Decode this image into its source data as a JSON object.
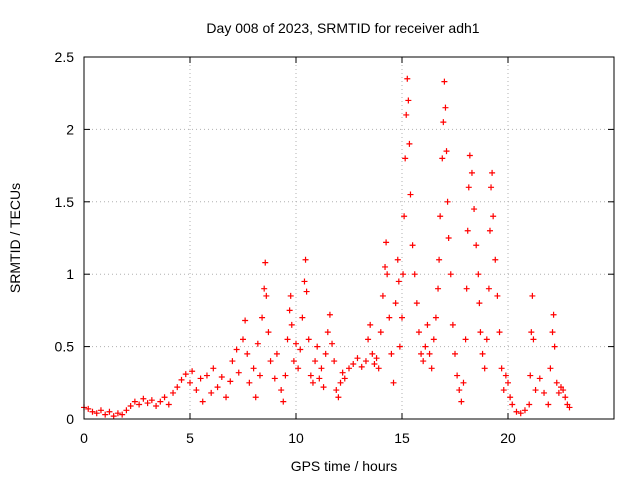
{
  "chart_data": {
    "type": "scatter",
    "title": "Day 008 of 2023, SRMTID for receiver adh1",
    "xlabel": "GPS time / hours",
    "ylabel": "SRMTID / TECUs",
    "xlim": [
      0,
      25
    ],
    "ylim": [
      0,
      2.5
    ],
    "xticks": [
      0,
      5,
      10,
      15,
      20
    ],
    "xtick_labels": [
      "0",
      "5",
      "10",
      "15",
      "20"
    ],
    "yticks": [
      0,
      0.5,
      1,
      1.5,
      2,
      2.5
    ],
    "ytick_labels": [
      "0",
      "0.5",
      "1",
      "1.5",
      "2",
      "2.5"
    ],
    "grid": true,
    "marker": "+",
    "color": "#ff0000",
    "series": [
      {
        "name": "adh1",
        "points": [
          [
            0.0,
            0.08
          ],
          [
            0.2,
            0.07
          ],
          [
            0.4,
            0.05
          ],
          [
            0.6,
            0.04
          ],
          [
            0.8,
            0.06
          ],
          [
            1.0,
            0.03
          ],
          [
            1.2,
            0.05
          ],
          [
            1.4,
            0.02
          ],
          [
            1.6,
            0.04
          ],
          [
            1.8,
            0.03
          ],
          [
            2.0,
            0.06
          ],
          [
            2.2,
            0.09
          ],
          [
            2.4,
            0.12
          ],
          [
            2.6,
            0.1
          ],
          [
            2.8,
            0.14
          ],
          [
            3.0,
            0.11
          ],
          [
            3.2,
            0.13
          ],
          [
            3.4,
            0.09
          ],
          [
            3.6,
            0.12
          ],
          [
            3.8,
            0.15
          ],
          [
            4.0,
            0.1
          ],
          [
            4.2,
            0.18
          ],
          [
            4.4,
            0.22
          ],
          [
            4.6,
            0.27
          ],
          [
            4.8,
            0.31
          ],
          [
            5.0,
            0.25
          ],
          [
            5.1,
            0.33
          ],
          [
            5.3,
            0.2
          ],
          [
            5.5,
            0.28
          ],
          [
            5.6,
            0.12
          ],
          [
            5.8,
            0.3
          ],
          [
            6.0,
            0.18
          ],
          [
            6.1,
            0.35
          ],
          [
            6.3,
            0.22
          ],
          [
            6.5,
            0.29
          ],
          [
            6.7,
            0.15
          ],
          [
            6.9,
            0.26
          ],
          [
            7.0,
            0.4
          ],
          [
            7.2,
            0.48
          ],
          [
            7.3,
            0.32
          ],
          [
            7.5,
            0.55
          ],
          [
            7.6,
            0.68
          ],
          [
            7.7,
            0.45
          ],
          [
            7.8,
            0.25
          ],
          [
            8.0,
            0.35
          ],
          [
            8.1,
            0.15
          ],
          [
            8.2,
            0.52
          ],
          [
            8.3,
            0.3
          ],
          [
            8.4,
            0.7
          ],
          [
            8.5,
            0.9
          ],
          [
            8.55,
            1.08
          ],
          [
            8.6,
            0.85
          ],
          [
            8.7,
            0.6
          ],
          [
            8.8,
            0.4
          ],
          [
            9.0,
            0.28
          ],
          [
            9.1,
            0.45
          ],
          [
            9.3,
            0.2
          ],
          [
            9.4,
            0.12
          ],
          [
            9.5,
            0.3
          ],
          [
            9.6,
            0.55
          ],
          [
            9.7,
            0.75
          ],
          [
            9.75,
            0.85
          ],
          [
            9.8,
            0.65
          ],
          [
            9.9,
            0.4
          ],
          [
            10.0,
            0.52
          ],
          [
            10.1,
            0.35
          ],
          [
            10.2,
            0.48
          ],
          [
            10.3,
            0.7
          ],
          [
            10.4,
            0.95
          ],
          [
            10.45,
            1.1
          ],
          [
            10.5,
            0.88
          ],
          [
            10.6,
            0.55
          ],
          [
            10.7,
            0.3
          ],
          [
            10.8,
            0.25
          ],
          [
            10.9,
            0.4
          ],
          [
            11.0,
            0.5
          ],
          [
            11.1,
            0.28
          ],
          [
            11.2,
            0.35
          ],
          [
            11.3,
            0.22
          ],
          [
            11.4,
            0.45
          ],
          [
            11.5,
            0.6
          ],
          [
            11.6,
            0.72
          ],
          [
            11.7,
            0.52
          ],
          [
            11.8,
            0.4
          ],
          [
            11.9,
            0.2
          ],
          [
            12.0,
            0.15
          ],
          [
            12.1,
            0.25
          ],
          [
            12.2,
            0.32
          ],
          [
            12.3,
            0.28
          ],
          [
            12.5,
            0.35
          ],
          [
            12.7,
            0.38
          ],
          [
            12.9,
            0.42
          ],
          [
            13.1,
            0.36
          ],
          [
            13.3,
            0.4
          ],
          [
            13.4,
            0.55
          ],
          [
            13.5,
            0.65
          ],
          [
            13.6,
            0.45
          ],
          [
            13.7,
            0.38
          ],
          [
            13.8,
            0.42
          ],
          [
            13.9,
            0.35
          ],
          [
            14.0,
            0.6
          ],
          [
            14.1,
            0.85
          ],
          [
            14.2,
            1.05
          ],
          [
            14.25,
            1.22
          ],
          [
            14.3,
            1.0
          ],
          [
            14.4,
            0.7
          ],
          [
            14.5,
            0.45
          ],
          [
            14.6,
            0.25
          ],
          [
            14.7,
            0.8
          ],
          [
            14.8,
            1.1
          ],
          [
            14.85,
            0.95
          ],
          [
            14.9,
            0.5
          ],
          [
            15.0,
            0.7
          ],
          [
            15.05,
            1.0
          ],
          [
            15.1,
            1.4
          ],
          [
            15.15,
            1.8
          ],
          [
            15.2,
            2.1
          ],
          [
            15.25,
            2.35
          ],
          [
            15.3,
            2.2
          ],
          [
            15.35,
            1.9
          ],
          [
            15.4,
            1.55
          ],
          [
            15.5,
            1.2
          ],
          [
            15.6,
            1.0
          ],
          [
            15.7,
            0.8
          ],
          [
            15.8,
            0.6
          ],
          [
            15.9,
            0.45
          ],
          [
            16.0,
            0.4
          ],
          [
            16.1,
            0.5
          ],
          [
            16.2,
            0.65
          ],
          [
            16.3,
            0.45
          ],
          [
            16.4,
            0.35
          ],
          [
            16.5,
            0.55
          ],
          [
            16.6,
            0.7
          ],
          [
            16.7,
            0.9
          ],
          [
            16.75,
            1.1
          ],
          [
            16.8,
            1.4
          ],
          [
            16.9,
            1.8
          ],
          [
            16.95,
            2.05
          ],
          [
            17.0,
            2.33
          ],
          [
            17.05,
            2.15
          ],
          [
            17.1,
            1.85
          ],
          [
            17.15,
            1.5
          ],
          [
            17.2,
            1.25
          ],
          [
            17.3,
            1.0
          ],
          [
            17.4,
            0.65
          ],
          [
            17.5,
            0.45
          ],
          [
            17.6,
            0.3
          ],
          [
            17.7,
            0.2
          ],
          [
            17.8,
            0.12
          ],
          [
            17.9,
            0.25
          ],
          [
            18.0,
            0.55
          ],
          [
            18.05,
            0.9
          ],
          [
            18.1,
            1.3
          ],
          [
            18.15,
            1.6
          ],
          [
            18.2,
            1.82
          ],
          [
            18.3,
            1.7
          ],
          [
            18.4,
            1.45
          ],
          [
            18.5,
            1.2
          ],
          [
            18.6,
            1.0
          ],
          [
            18.65,
            0.8
          ],
          [
            18.7,
            0.6
          ],
          [
            18.8,
            0.45
          ],
          [
            18.9,
            0.35
          ],
          [
            19.0,
            0.55
          ],
          [
            19.1,
            0.9
          ],
          [
            19.15,
            1.3
          ],
          [
            19.2,
            1.6
          ],
          [
            19.25,
            1.7
          ],
          [
            19.3,
            1.4
          ],
          [
            19.4,
            1.1
          ],
          [
            19.5,
            0.85
          ],
          [
            19.6,
            0.6
          ],
          [
            19.7,
            0.35
          ],
          [
            19.8,
            0.2
          ],
          [
            19.9,
            0.3
          ],
          [
            20.0,
            0.25
          ],
          [
            20.1,
            0.15
          ],
          [
            20.2,
            0.1
          ],
          [
            20.4,
            0.05
          ],
          [
            20.6,
            0.04
          ],
          [
            20.8,
            0.06
          ],
          [
            21.0,
            0.1
          ],
          [
            21.05,
            0.3
          ],
          [
            21.1,
            0.6
          ],
          [
            21.15,
            0.85
          ],
          [
            21.2,
            0.55
          ],
          [
            21.3,
            0.2
          ],
          [
            21.5,
            0.28
          ],
          [
            21.7,
            0.18
          ],
          [
            21.9,
            0.1
          ],
          [
            22.0,
            0.35
          ],
          [
            22.1,
            0.6
          ],
          [
            22.15,
            0.72
          ],
          [
            22.2,
            0.5
          ],
          [
            22.3,
            0.25
          ],
          [
            22.4,
            0.18
          ],
          [
            22.5,
            0.22
          ],
          [
            22.6,
            0.2
          ],
          [
            22.7,
            0.15
          ],
          [
            22.8,
            0.1
          ],
          [
            22.9,
            0.08
          ]
        ]
      }
    ]
  }
}
